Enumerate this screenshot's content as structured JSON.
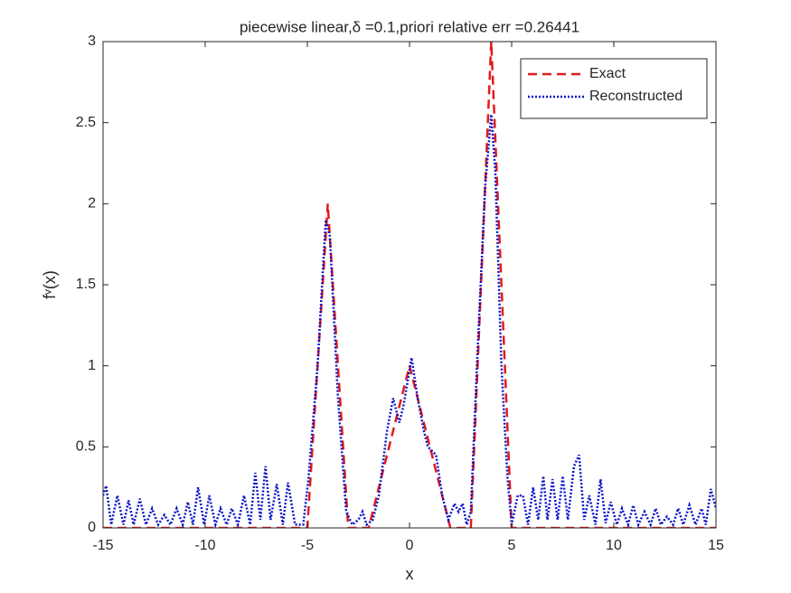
{
  "chart_data": {
    "type": "line",
    "title": "piecewise linear,δ =0.1,priori relative err =0.26441",
    "xlabel": "x",
    "ylabel": "fᵛ(x)",
    "xlim": [
      -15,
      15
    ],
    "ylim": [
      0,
      3
    ],
    "xticks": [
      -15,
      -10,
      -5,
      0,
      5,
      10,
      15
    ],
    "yticks": [
      0,
      0.5,
      1,
      1.5,
      2,
      2.5,
      3
    ],
    "legend": "upper right",
    "series": [
      {
        "name": "Exact",
        "color": "#e31a1c",
        "style": "dashed",
        "x": [
          -15,
          -5,
          -4,
          -3,
          -2,
          0,
          2,
          3,
          4,
          5,
          15
        ],
        "values": [
          0,
          0,
          2,
          0,
          0,
          1,
          0,
          0,
          3,
          0,
          0
        ]
      },
      {
        "name": "Reconstructed",
        "color": "#0a14c8",
        "style": "dotted",
        "x": [
          -15,
          -14.85,
          -14.6,
          -14.3,
          -14.0,
          -13.75,
          -13.5,
          -13.2,
          -12.9,
          -12.6,
          -12.3,
          -12.0,
          -11.7,
          -11.4,
          -11.1,
          -10.85,
          -10.6,
          -10.35,
          -10.05,
          -9.8,
          -9.5,
          -9.25,
          -8.95,
          -8.7,
          -8.4,
          -8.1,
          -7.8,
          -7.55,
          -7.3,
          -7.05,
          -6.8,
          -6.5,
          -6.2,
          -5.95,
          -5.6,
          -5.2,
          -4.95,
          -4.5,
          -4.1,
          -3.9,
          -3.5,
          -3.1,
          -2.8,
          -2.5,
          -2.3,
          -2.1,
          -1.8,
          -1.5,
          -1.1,
          -0.8,
          -0.5,
          -0.3,
          0.1,
          0.4,
          0.7,
          0.9,
          1.3,
          1.6,
          1.9,
          2.2,
          2.4,
          2.6,
          2.8,
          3.0,
          3.3,
          3.7,
          4.0,
          4.2,
          4.5,
          4.8,
          5.0,
          5.3,
          5.55,
          5.8,
          6.05,
          6.3,
          6.55,
          6.75,
          7.0,
          7.25,
          7.5,
          7.75,
          8.05,
          8.3,
          8.55,
          8.8,
          9.1,
          9.35,
          9.6,
          9.85,
          10.15,
          10.4,
          10.7,
          10.95,
          11.2,
          11.5,
          11.8,
          12.05,
          12.3,
          12.6,
          12.9,
          13.15,
          13.4,
          13.7,
          14.0,
          14.3,
          14.5,
          14.75,
          15
        ],
        "values": [
          0.2,
          0.26,
          0.02,
          0.2,
          0.02,
          0.17,
          0.02,
          0.18,
          0.02,
          0.12,
          0.02,
          0.08,
          0.02,
          0.12,
          0.02,
          0.16,
          0.02,
          0.25,
          0.02,
          0.2,
          0.02,
          0.12,
          0.02,
          0.12,
          0.02,
          0.2,
          0.02,
          0.34,
          0.05,
          0.38,
          0.05,
          0.27,
          0.02,
          0.28,
          0.02,
          0.02,
          0.3,
          1.0,
          1.9,
          1.8,
          0.8,
          0.1,
          0.02,
          0.05,
          0.1,
          0.02,
          0.05,
          0.2,
          0.6,
          0.8,
          0.65,
          0.75,
          1.05,
          0.8,
          0.6,
          0.5,
          0.45,
          0.2,
          0.05,
          0.15,
          0.1,
          0.15,
          0.02,
          0.1,
          1.0,
          2.1,
          2.55,
          2.2,
          1.0,
          0.3,
          0.02,
          0.2,
          0.2,
          0.02,
          0.25,
          0.05,
          0.32,
          0.05,
          0.3,
          0.05,
          0.32,
          0.05,
          0.38,
          0.45,
          0.05,
          0.2,
          0.02,
          0.3,
          0.03,
          0.16,
          0.02,
          0.12,
          0.02,
          0.14,
          0.02,
          0.1,
          0.02,
          0.12,
          0.02,
          0.07,
          0.02,
          0.12,
          0.02,
          0.14,
          0.02,
          0.12,
          0.02,
          0.24,
          0.12
        ]
      }
    ]
  }
}
